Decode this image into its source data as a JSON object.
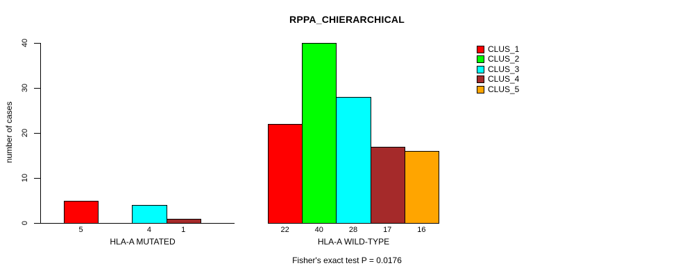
{
  "chart_data": {
    "type": "bar",
    "title": "RPPA_CHIERARCHICAL",
    "ylabel": "number of cases",
    "xlabel": "",
    "ylim": [
      0,
      40
    ],
    "y_ticks": [
      0,
      10,
      20,
      30,
      40
    ],
    "categories": [
      "HLA-A MUTATED",
      "HLA-A WILD-TYPE"
    ],
    "series": [
      {
        "name": "CLUS_1",
        "color": "#FF0000",
        "values": [
          5,
          22
        ]
      },
      {
        "name": "CLUS_2",
        "color": "#00FF00",
        "values": [
          0,
          40
        ]
      },
      {
        "name": "CLUS_3",
        "color": "#00FFFF",
        "values": [
          4,
          28
        ]
      },
      {
        "name": "CLUS_4",
        "color": "#A52A2A",
        "values": [
          1,
          17
        ]
      },
      {
        "name": "CLUS_5",
        "color": "#FFA500",
        "values": [
          0,
          16
        ]
      }
    ],
    "bar_value_labels_shown": true,
    "zero_values_drawn_as_gaps": true,
    "legend_position": "right",
    "annotation": "Fisher's exact test P = 0.0176",
    "grid": false,
    "axis_color": "#000000",
    "background": "#FFFFFF"
  }
}
